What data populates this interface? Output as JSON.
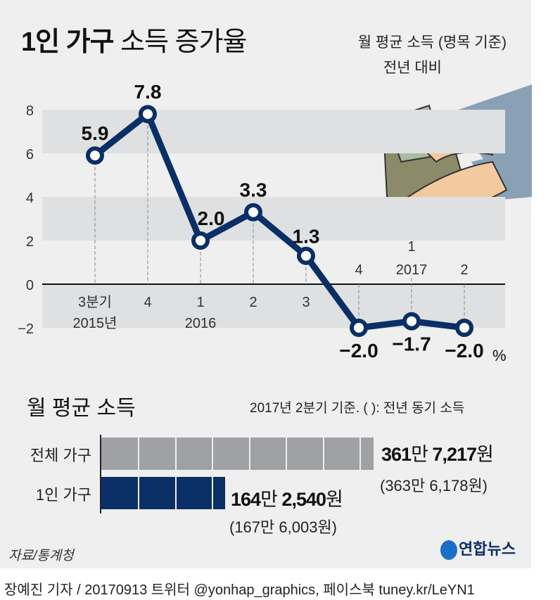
{
  "title_bold": "1인 가구",
  "title_rest": "소득 증가율",
  "subtitle_1": "월 평균 소득 (명목 기준)",
  "subtitle_2": "전년 대비",
  "chart_data": [
    {
      "type": "line",
      "ylim": [
        -2,
        8
      ],
      "yticks": [
        "8",
        "6",
        "4",
        "2",
        "0",
        "−2"
      ],
      "ytick_values": [
        8,
        6,
        4,
        2,
        0,
        -2
      ],
      "categories": [
        "3분기 2015년",
        "4",
        "1 2016",
        "2",
        "3",
        "4",
        "1 2017",
        "2"
      ],
      "x_labels": [
        [
          "3분기",
          "2015년"
        ],
        [
          "4",
          ""
        ],
        [
          "1",
          "2016"
        ],
        [
          "2",
          ""
        ],
        [
          "3",
          ""
        ],
        [
          "4",
          ""
        ],
        [
          "1",
          "2017"
        ],
        [
          "2",
          ""
        ]
      ],
      "values": [
        5.9,
        7.8,
        2.0,
        3.3,
        1.3,
        -2.0,
        -1.7,
        -2.0
      ],
      "data_labels": [
        "5.9",
        "7.8",
        "2.0",
        "3.3",
        "1.3",
        "−2.0",
        "−1.7",
        "−2.0"
      ],
      "unit": "%",
      "line_color": "#0a2f66",
      "band_color": "#dfe0e2"
    },
    {
      "type": "bar",
      "title": "월 평균 소득",
      "note": "2017년 2분기 기준. ( ): 전년 동기 소득",
      "categories": [
        "전체 가구",
        "1인 가구"
      ],
      "values": [
        3617217,
        1642540
      ],
      "labels": [
        {
          "man": "361",
          "man_unit": "만",
          "rest": "7,217",
          "won": "원",
          "prev": "(363만 6,178원)"
        },
        {
          "man": "164",
          "man_unit": "만",
          "rest": "2,540",
          "won": "원",
          "prev": "(167만 6,003원)"
        }
      ],
      "colors": [
        "#a0a1a4",
        "#0a2f66"
      ]
    }
  ],
  "source": "자료/통계청",
  "logo": "연합뉴스",
  "credit": "장예진 기자 / 20170913 트위터 @yonhap_graphics, 페이스북 tuney.kr/LeYN1"
}
